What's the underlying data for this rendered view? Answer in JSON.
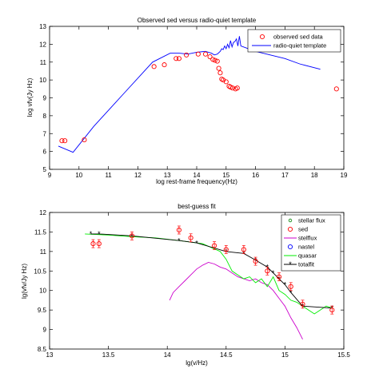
{
  "chart_data": [
    {
      "type": "scatter",
      "title": "Observed sed versus radio-quiet template",
      "xlabel": "log rest-frame frequency(Hz)",
      "ylabel": "log νfν(Jy Hz)",
      "xlim": [
        9,
        19
      ],
      "ylim": [
        5,
        13
      ],
      "xticks": [
        "9",
        "10",
        "11",
        "12",
        "13",
        "14",
        "15",
        "16",
        "17",
        "18",
        "19"
      ],
      "yticks": [
        "5",
        "6",
        "7",
        "8",
        "9",
        "10",
        "11",
        "12",
        "13"
      ],
      "grid": false,
      "legend_position": "top-right",
      "colors": {
        "observed": "#ff0000",
        "template": "#0000ff"
      },
      "series": [
        {
          "name": "observed sed data",
          "style": "open-circle",
          "color": "#ff0000",
          "x": [
            9.42,
            9.52,
            10.18,
            12.55,
            12.9,
            13.3,
            13.4,
            13.65,
            14.05,
            14.3,
            14.45,
            14.55,
            14.62,
            14.7,
            14.75,
            14.8,
            14.85,
            14.9,
            15.0,
            15.1,
            15.15,
            15.22,
            15.32,
            15.38,
            18.75
          ],
          "y": [
            6.6,
            6.6,
            6.65,
            10.75,
            10.85,
            11.2,
            11.2,
            11.4,
            11.45,
            11.45,
            11.3,
            11.15,
            11.1,
            11.05,
            10.65,
            10.4,
            10.05,
            10.0,
            9.9,
            9.65,
            9.6,
            9.55,
            9.5,
            9.55,
            9.5
          ]
        },
        {
          "name": "radio-quiet template",
          "style": "line",
          "color": "#0000ff",
          "x": [
            9.3,
            9.8,
            10.5,
            11.5,
            12.5,
            13.1,
            13.4,
            13.7,
            14.0,
            14.3,
            14.5,
            14.6,
            14.7,
            14.8,
            14.85,
            14.9,
            14.95,
            15.0,
            15.05,
            15.1,
            15.15,
            15.2,
            15.25,
            15.3,
            15.35,
            15.4,
            15.45,
            15.5,
            16.0,
            17.0,
            17.5,
            18.2
          ],
          "y": [
            6.3,
            5.95,
            7.4,
            9.2,
            11.0,
            11.5,
            11.5,
            11.45,
            11.55,
            11.6,
            11.5,
            11.4,
            11.45,
            11.6,
            11.75,
            11.7,
            11.9,
            11.75,
            12.0,
            11.8,
            12.2,
            11.85,
            12.1,
            12.15,
            12.3,
            11.9,
            12.45,
            11.9,
            11.6,
            11.2,
            10.9,
            10.6
          ]
        }
      ]
    },
    {
      "type": "line",
      "title": "best-guess fit",
      "xlabel": "lg(v/Hz)",
      "ylabel": "lg(vfv/Jy Hz)",
      "xlim": [
        13,
        15.5
      ],
      "ylim": [
        8.5,
        12
      ],
      "xticks": [
        "13",
        "13.5",
        "14",
        "14.5",
        "15",
        "15.5"
      ],
      "yticks": [
        "8.5",
        "9",
        "9.5",
        "10",
        "10.5",
        "11",
        "11.5",
        "12"
      ],
      "grid": false,
      "legend_position": "top-right",
      "colors": {
        "stellar": "#008000",
        "sed": "#ff0000",
        "stelflux": "#cc00cc",
        "nastel": "#0000ff",
        "quasar": "#00ee00",
        "totalfit": "#000000"
      },
      "series": [
        {
          "name": "stellar flux",
          "style": "small-circle",
          "color": "#008000",
          "x": [],
          "y": []
        },
        {
          "name": "sed",
          "style": "open-circle-errorbar",
          "color": "#ff0000",
          "x": [
            13.37,
            13.42,
            13.7,
            14.1,
            14.2,
            14.4,
            14.5,
            14.65,
            14.75,
            14.85,
            14.95,
            15.05,
            15.15,
            15.4
          ],
          "y": [
            11.2,
            11.2,
            11.4,
            11.55,
            11.35,
            11.15,
            11.05,
            11.05,
            10.75,
            10.5,
            10.35,
            10.1,
            9.65,
            9.5
          ]
        },
        {
          "name": "stelflux",
          "style": "line",
          "color": "#cc00cc",
          "x": [
            14.02,
            14.05,
            14.1,
            14.15,
            14.2,
            14.25,
            14.3,
            14.35,
            14.4,
            14.45,
            14.5,
            14.55,
            14.6,
            14.65,
            14.7,
            14.75,
            14.8,
            14.85,
            14.9,
            14.95,
            15.0,
            15.05,
            15.1,
            15.15
          ],
          "y": [
            9.75,
            9.95,
            10.1,
            10.25,
            10.4,
            10.55,
            10.65,
            10.72,
            10.68,
            10.6,
            10.55,
            10.45,
            10.35,
            10.3,
            10.25,
            10.3,
            10.2,
            10.15,
            10.0,
            9.8,
            9.6,
            9.3,
            9.05,
            8.75
          ]
        },
        {
          "name": "nastel",
          "style": "open-circle",
          "color": "#0000ff",
          "x": [],
          "y": []
        },
        {
          "name": "quasar",
          "style": "line",
          "color": "#00ee00",
          "x": [
            13.3,
            13.5,
            13.7,
            13.9,
            14.1,
            14.3,
            14.45,
            14.5,
            14.55,
            14.6,
            14.65,
            14.7,
            14.75,
            14.8,
            14.85,
            14.9,
            14.95,
            15.0,
            15.05,
            15.1,
            15.15,
            15.2,
            15.25,
            15.3,
            15.35,
            15.4
          ],
          "y": [
            11.45,
            11.42,
            11.38,
            11.35,
            11.28,
            11.2,
            11.0,
            10.8,
            10.5,
            10.4,
            10.3,
            10.35,
            10.2,
            10.3,
            10.1,
            10.35,
            10.0,
            9.9,
            9.75,
            9.7,
            9.6,
            9.5,
            9.4,
            9.5,
            9.6,
            9.55
          ]
        },
        {
          "name": "totalfit",
          "style": "line-star",
          "color": "#000000",
          "x": [
            13.35,
            13.42,
            13.7,
            14.1,
            14.25,
            14.5,
            14.65,
            14.75,
            14.85,
            14.9,
            14.95,
            15.0,
            15.05,
            15.15,
            15.4
          ],
          "y": [
            11.45,
            11.45,
            11.4,
            11.28,
            11.22,
            11.0,
            10.95,
            10.78,
            10.6,
            10.45,
            10.3,
            10.15,
            9.95,
            9.6,
            9.55
          ]
        }
      ]
    }
  ]
}
